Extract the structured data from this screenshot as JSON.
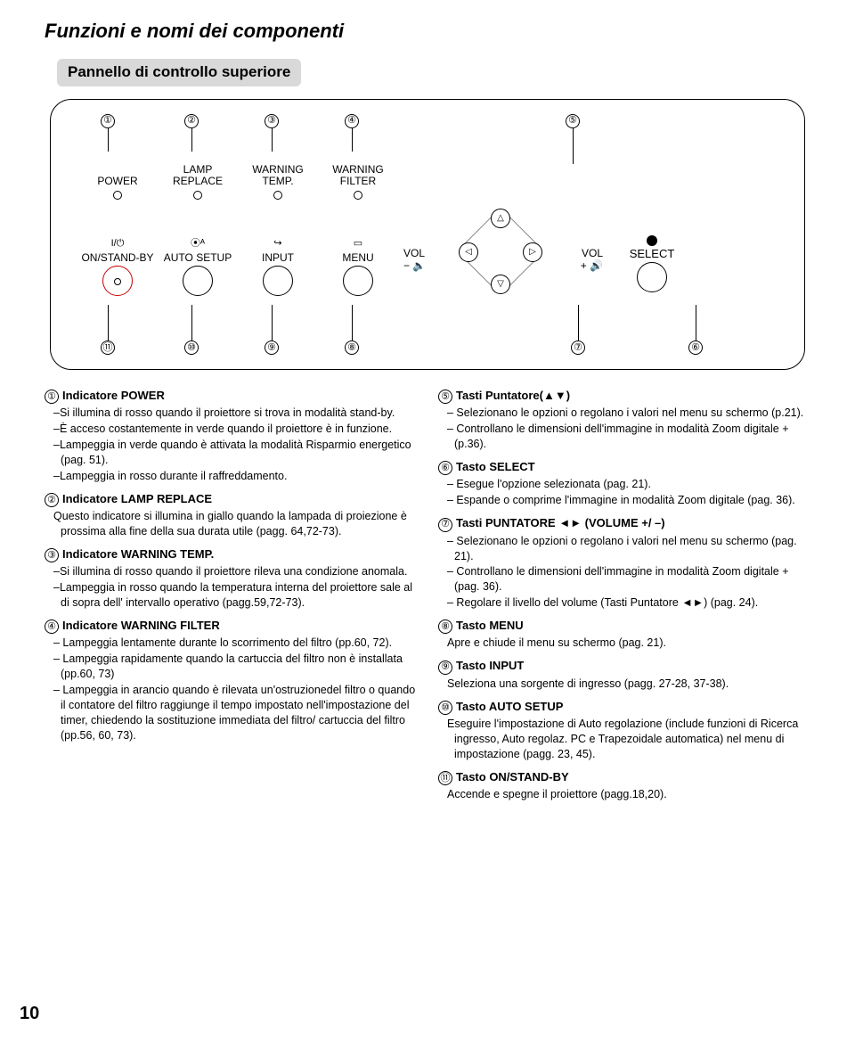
{
  "title": "Funzioni e nomi dei componenti",
  "subtitle": "Pannello di controllo superiore",
  "page_number": "10",
  "panel": {
    "top_numbers": [
      "①",
      "②",
      "③",
      "④",
      "⑤"
    ],
    "bottom_numbers": [
      "⑪",
      "⑩",
      "⑨",
      "⑧",
      "⑦",
      "⑥"
    ],
    "indicators": [
      {
        "label1": "",
        "label2": "POWER"
      },
      {
        "label1": "LAMP",
        "label2": "REPLACE"
      },
      {
        "label1": "WARNING",
        "label2": "TEMP."
      },
      {
        "label1": "WARNING",
        "label2": "FILTER"
      }
    ],
    "buttons": [
      {
        "sub": "ON/STAND-BY",
        "icon": "I/⏻"
      },
      {
        "sub": "AUTO SETUP",
        "icon": "⦿ᴬ"
      },
      {
        "sub": "INPUT",
        "icon": "↪"
      },
      {
        "sub": "MENU",
        "icon": "▭"
      }
    ],
    "vol_minus": "VOL",
    "vol_plus": "VOL",
    "select": "SELECT"
  },
  "left_items": [
    {
      "n": "①",
      "t": "Indicatore POWER",
      "b": [
        "–Si illumina di rosso quando il proiettore si trova in modalità stand-by.",
        "–È acceso costantemente in verde quando il proiettore è in funzione.",
        "–Lampeggia in verde quando è attivata la modalità Risparmio energetico (pag. 51).",
        "–Lampeggia in rosso durante il raffreddamento."
      ]
    },
    {
      "n": "②",
      "t": "Indicatore LAMP REPLACE",
      "b": [
        "Questo indicatore si illumina in giallo quando la lampada di proiezione è prossima alla fine della sua durata utile (pagg. 64,72-73)."
      ]
    },
    {
      "n": "③",
      "t": "Indicatore WARNING TEMP.",
      "b": [
        "–Si illumina di rosso quando il proiettore rileva una condizione anomala.",
        "–Lampeggia in rosso quando la temperatura interna del proiettore sale al di sopra dell' intervallo operativo (pagg.59,72-73)."
      ]
    },
    {
      "n": "④",
      "t": "Indicatore WARNING FILTER",
      "b": [
        "– Lampeggia lentamente durante lo scorrimento del filtro (pp.60, 72).",
        "– Lampeggia rapidamente quando la cartuccia del filtro non è installata (pp.60, 73)",
        "– Lampeggia in arancio quando è rilevata un'ostruzionedel filtro o quando il contatore del filtro raggiunge il tempo impostato nell'impostazione del timer, chiedendo la sostituzione immediata del filtro/ cartuccia del filtro (pp.56, 60, 73)."
      ]
    }
  ],
  "right_items": [
    {
      "n": "⑤",
      "t": "Tasti Puntatore(▲▼)",
      "b": [
        "– Selezionano le opzioni o regolano i valori nel menu su schermo (p.21).",
        "– Controllano le dimensioni dell'immagine in modalità Zoom digitale + (p.36)."
      ]
    },
    {
      "n": "⑥",
      "t": "Tasto SELECT",
      "b": [
        "– Esegue l'opzione selezionata (pag. 21).",
        "– Espande o comprime l'immagine in modalità Zoom digitale (pag. 36)."
      ]
    },
    {
      "n": "⑦",
      "t": "Tasti PUNTATORE ◄► (VOLUME +/ –)",
      "b": [
        "– Selezionano le opzioni o regolano i valori nel menu su schermo (pag. 21).",
        "– Controllano le dimensioni dell'immagine in modalità Zoom digitale + (pag. 36).",
        "– Regolare il livello del volume (Tasti Puntatore ◄►) (pag. 24)."
      ]
    },
    {
      "n": "⑧",
      "t": "Tasto MENU",
      "b": [
        "Apre e chiude il menu su schermo (pag. 21)."
      ]
    },
    {
      "n": "⑨",
      "t": "Tasto INPUT",
      "b": [
        "Seleziona una sorgente di ingresso (pagg. 27-28, 37-38)."
      ]
    },
    {
      "n": "⑩",
      "t": "Tasto AUTO SETUP",
      "b": [
        "Eseguire l'impostazione di Auto regolazione (include funzioni di Ricerca ingresso, Auto regolaz. PC e Trapezoidale automatica) nel menu di impostazione (pagg. 23, 45)."
      ]
    },
    {
      "n": "⑪",
      "t": "Tasto ON/STAND-BY",
      "b": [
        "Accende e spegne il proiettore (pagg.18,20)."
      ]
    }
  ]
}
